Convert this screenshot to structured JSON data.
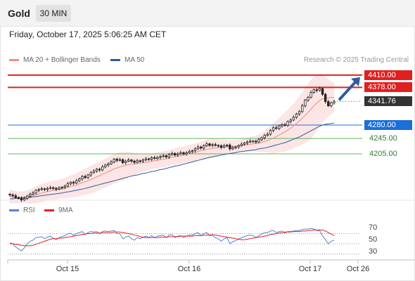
{
  "header": {
    "symbol": "Gold",
    "timeframe": "30 MIN"
  },
  "datetime": "Friday, October 17, 2025 5:06:25 AM CET",
  "legend": [
    {
      "label": "MA 20 + Bollinger Bands",
      "color": "#f08a8a"
    },
    {
      "label": "MA 50",
      "color": "#2e5c9e"
    }
  ],
  "credit": "Research © 2025 Trading Central",
  "rsi_legend": [
    {
      "label": "RSI",
      "color": "#5b7fd4"
    },
    {
      "label": "9MA",
      "color": "#e02020"
    }
  ],
  "price_levels": [
    {
      "value": "4410.00",
      "kind": "resistance",
      "color": "#e02020",
      "tag_bg": "#e02020",
      "tag_fg": "#ffffff"
    },
    {
      "value": "4378.00",
      "kind": "resistance",
      "color": "#e02020",
      "tag_bg": "#e02020",
      "tag_fg": "#ffffff"
    },
    {
      "value": "4341.76",
      "kind": "last",
      "color": "#333333",
      "tag_bg": "#333333",
      "tag_fg": "#ffffff"
    },
    {
      "value": "4280.00",
      "kind": "pivot",
      "color": "#1a6fd8",
      "tag_bg": "#1a6fd8",
      "tag_fg": "#ffffff"
    },
    {
      "value": "4245.00",
      "kind": "support",
      "color": "#5cb85c",
      "tag_bg": "transparent",
      "tag_fg": "#2e7d32"
    },
    {
      "value": "4205.00",
      "kind": "support",
      "color": "#5cb85c",
      "tag_bg": "transparent",
      "tag_fg": "#2e7d32"
    }
  ],
  "x_labels": [
    "Oct 15",
    "Oct 16",
    "Oct 17",
    "Oct 26"
  ],
  "rsi_levels": [
    "70",
    "50",
    "30"
  ],
  "chart_data": {
    "type": "candlestick",
    "title": "Gold",
    "timeframe": "30 MIN",
    "ylim": [
      4050,
      4420
    ],
    "rsi_ylim": [
      10,
      90
    ],
    "close_series": [
      4098,
      4096,
      4091,
      4090,
      4085,
      4089,
      4095,
      4100,
      4103,
      4110,
      4112,
      4114,
      4112,
      4115,
      4117,
      4115,
      4113,
      4116,
      4118,
      4121,
      4127,
      4131,
      4129,
      4135,
      4140,
      4146,
      4143,
      4150,
      4156,
      4160,
      4165,
      4163,
      4171,
      4176,
      4179,
      4184,
      4191,
      4188,
      4190,
      4182,
      4186,
      4189,
      4186,
      4183,
      4187,
      4186,
      4189,
      4192,
      4191,
      4195,
      4193,
      4196,
      4198,
      4200,
      4197,
      4203,
      4206,
      4202,
      4205,
      4208,
      4205,
      4208,
      4211,
      4213,
      4218,
      4223,
      4220,
      4226,
      4231,
      4227,
      4229,
      4227,
      4226,
      4222,
      4226,
      4228,
      4218,
      4221,
      4223,
      4226,
      4230,
      4233,
      4236,
      4238,
      4238,
      4236,
      4242,
      4247,
      4253,
      4256,
      4266,
      4273,
      4271,
      4278,
      4281,
      4279,
      4289,
      4293,
      4300,
      4309,
      4315,
      4330,
      4345,
      4352,
      4365,
      4372,
      4370,
      4375,
      4360,
      4341,
      4330,
      4338,
      4341.76
    ],
    "ma20": [
      4094,
      4093,
      4092,
      4092,
      4092,
      4092,
      4093,
      4094,
      4096,
      4098,
      4101,
      4103,
      4105,
      4107,
      4108,
      4110,
      4111,
      4113,
      4114,
      4116,
      4118,
      4120,
      4122,
      4124,
      4127,
      4130,
      4132,
      4135,
      4138,
      4141,
      4145,
      4148,
      4152,
      4155,
      4159,
      4162,
      4166,
      4168,
      4171,
      4173,
      4175,
      4177,
      4178,
      4179,
      4180,
      4181,
      4182,
      4183,
      4184,
      4186,
      4187,
      4188,
      4190,
      4191,
      4192,
      4194,
      4196,
      4197,
      4199,
      4200,
      4202,
      4204,
      4205,
      4207,
      4209,
      4211,
      4213,
      4215,
      4217,
      4218,
      4219,
      4220,
      4221,
      4222,
      4223,
      4224,
      4224,
      4224,
      4225,
      4226,
      4227,
      4228,
      4229,
      4230,
      4231,
      4232,
      4233,
      4235,
      4237,
      4240,
      4243,
      4246,
      4250,
      4254,
      4258,
      4262,
      4267,
      4272,
      4278,
      4284,
      4290,
      4298,
      4305,
      4313,
      4321,
      4330,
      4337,
      4344,
      4348,
      4350,
      4351,
      4352,
      4352
    ],
    "bb_upper": [
      4112,
      4110,
      4108,
      4107,
      4107,
      4108,
      4110,
      4113,
      4116,
      4120,
      4124,
      4127,
      4129,
      4131,
      4133,
      4134,
      4136,
      4138,
      4140,
      4143,
      4146,
      4149,
      4152,
      4155,
      4159,
      4163,
      4166,
      4170,
      4174,
      4178,
      4182,
      4185,
      4189,
      4193,
      4197,
      4201,
      4205,
      4207,
      4209,
      4210,
      4210,
      4210,
      4209,
      4208,
      4207,
      4206,
      4205,
      4205,
      4206,
      4207,
      4208,
      4209,
      4210,
      4212,
      4213,
      4215,
      4217,
      4219,
      4221,
      4222,
      4224,
      4226,
      4228,
      4230,
      4232,
      4235,
      4237,
      4240,
      4242,
      4243,
      4244,
      4244,
      4243,
      4242,
      4242,
      4242,
      4241,
      4241,
      4241,
      4242,
      4243,
      4245,
      4247,
      4249,
      4251,
      4253,
      4256,
      4260,
      4265,
      4271,
      4278,
      4285,
      4292,
      4299,
      4306,
      4313,
      4320,
      4328,
      4336,
      4345,
      4355,
      4366,
      4377,
      4388,
      4398,
      4406,
      4410,
      4412,
      4410,
      4406,
      4400,
      4395,
      4390
    ],
    "bb_lower": [
      4076,
      4076,
      4076,
      4077,
      4077,
      4076,
      4076,
      4075,
      4076,
      4076,
      4078,
      4079,
      4081,
      4083,
      4083,
      4086,
      4086,
      4088,
      4088,
      4089,
      4090,
      4091,
      4092,
      4093,
      4095,
      4097,
      4098,
      4100,
      4102,
      4104,
      4108,
      4111,
      4115,
      4117,
      4121,
      4123,
      4127,
      4129,
      4133,
      4136,
      4140,
      4144,
      4147,
      4150,
      4153,
      4156,
      4159,
      4161,
      4162,
      4165,
      4166,
      4167,
      4170,
      4170,
      4171,
      4173,
      4175,
      4175,
      4177,
      4178,
      4180,
      4182,
      4182,
      4184,
      4186,
      4187,
      4189,
      4190,
      4192,
      4193,
      4194,
      4196,
      4199,
      4202,
      4204,
      4206,
      4207,
      4207,
      4209,
      4210,
      4211,
      4211,
      4211,
      4211,
      4211,
      4211,
      4210,
      4210,
      4209,
      4209,
      4208,
      4207,
      4208,
      4209,
      4210,
      4211,
      4214,
      4216,
      4220,
      4223,
      4225,
      4230,
      4233,
      4238,
      4244,
      4254,
      4264,
      4276,
      4286,
      4294,
      4302,
      4309,
      4314
    ],
    "ma50": [
      4088,
      4088,
      4089,
      4089,
      4090,
      4090,
      4091,
      4092,
      4093,
      4094,
      4095,
      4096,
      4097,
      4098,
      4099,
      4100,
      4101,
      4102,
      4103,
      4105,
      4106,
      4107,
      4109,
      4110,
      4112,
      4113,
      4115,
      4117,
      4119,
      4121,
      4123,
      4125,
      4127,
      4129,
      4131,
      4133,
      4135,
      4137,
      4139,
      4141,
      4143,
      4145,
      4147,
      4149,
      4150,
      4152,
      4154,
      4155,
      4157,
      4159,
      4160,
      4162,
      4164,
      4165,
      4167,
      4169,
      4171,
      4173,
      4174,
      4176,
      4178,
      4180,
      4182,
      4184,
      4186,
      4188,
      4190,
      4192,
      4194,
      4196,
      4197,
      4199,
      4200,
      4202,
      4203,
      4205,
      4206,
      4207,
      4208,
      4210,
      4211,
      4212,
      4213,
      4214,
      4215,
      4216,
      4218,
      4219,
      4220,
      4222,
      4224,
      4226,
      4228,
      4230,
      4232,
      4234,
      4237,
      4240,
      4243,
      4246,
      4249,
      4253,
      4257,
      4261,
      4265,
      4269,
      4273,
      4277,
      4280,
      4282,
      4283,
      4284,
      4285
    ],
    "rsi": [
      52,
      50,
      44,
      40,
      36,
      42,
      50,
      55,
      57,
      62,
      63,
      64,
      60,
      63,
      65,
      61,
      58,
      62,
      64,
      66,
      69,
      71,
      66,
      70,
      72,
      74,
      68,
      72,
      74,
      73,
      74,
      70,
      74,
      75,
      74,
      75,
      76,
      70,
      70,
      60,
      63,
      65,
      60,
      57,
      62,
      60,
      63,
      65,
      62,
      66,
      62,
      65,
      66,
      67,
      62,
      67,
      68,
      62,
      65,
      66,
      62,
      65,
      67,
      67,
      70,
      72,
      66,
      70,
      72,
      66,
      66,
      62,
      60,
      55,
      60,
      62,
      50,
      54,
      56,
      59,
      62,
      64,
      66,
      67,
      66,
      62,
      66,
      69,
      72,
      72,
      75,
      76,
      72,
      74,
      75,
      71,
      74,
      74,
      75,
      76,
      76,
      78,
      79,
      79,
      80,
      79,
      76,
      76,
      66,
      58,
      50,
      55,
      57
    ],
    "rsi_ma9": [
      50,
      50,
      49,
      48,
      47,
      46,
      46,
      46,
      47,
      49,
      51,
      53,
      55,
      57,
      59,
      60,
      60,
      61,
      61,
      62,
      63,
      64,
      65,
      66,
      67,
      68,
      69,
      70,
      70,
      71,
      71,
      71,
      72,
      72,
      72,
      72,
      73,
      73,
      73,
      72,
      71,
      70,
      69,
      67,
      66,
      64,
      63,
      62,
      62,
      62,
      62,
      62,
      63,
      63,
      63,
      64,
      64,
      64,
      64,
      65,
      65,
      65,
      65,
      65,
      66,
      66,
      66,
      67,
      67,
      67,
      68,
      67,
      66,
      65,
      64,
      63,
      62,
      61,
      60,
      59,
      58,
      58,
      59,
      60,
      61,
      62,
      63,
      64,
      65,
      66,
      68,
      69,
      70,
      71,
      72,
      73,
      73,
      73,
      74,
      74,
      74,
      75,
      75,
      76,
      76,
      77,
      77,
      77,
      77,
      75,
      72,
      69,
      66
    ]
  }
}
